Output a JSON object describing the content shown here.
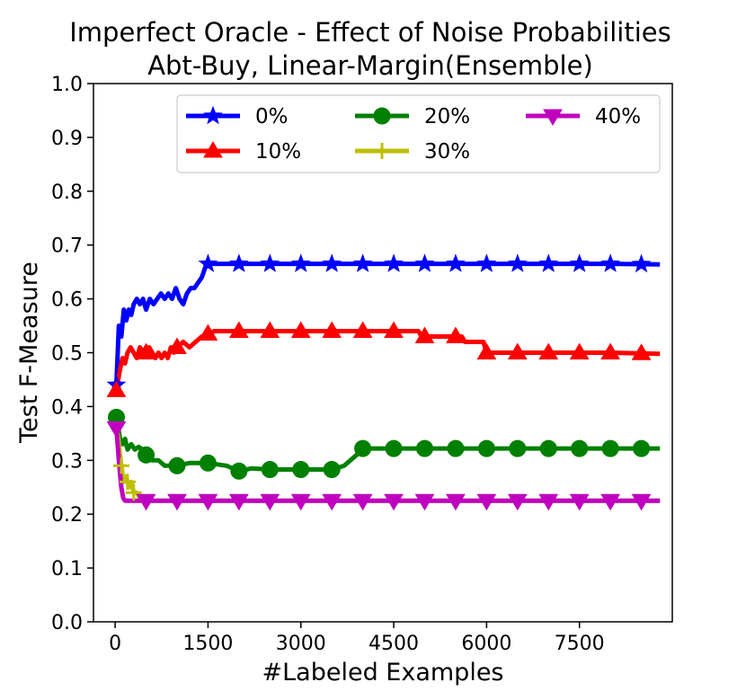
{
  "chart_data": {
    "type": "line",
    "title": "Imperfect Oracle - Effect of Noise Probabilities",
    "subtitle": "Abt-Buy, Linear-Margin(Ensemble)",
    "xlabel": "#Labeled Examples",
    "ylabel": "Test F-Measure",
    "xlim": [
      -350,
      9000
    ],
    "ylim": [
      0.0,
      1.0
    ],
    "xticks": [
      0,
      1500,
      3000,
      4500,
      6000,
      7500
    ],
    "xtick_labels": [
      "0",
      "1500",
      "3000",
      "4500",
      "6000",
      "7500"
    ],
    "yticks": [
      0.0,
      0.1,
      0.2,
      0.3,
      0.4,
      0.5,
      0.6,
      0.7,
      0.8,
      0.9,
      1.0
    ],
    "ytick_labels": [
      "0.0",
      "0.1",
      "0.2",
      "0.3",
      "0.4",
      "0.5",
      "0.6",
      "0.7",
      "0.8",
      "0.9",
      "1.0"
    ],
    "legend_position": "top-right",
    "grid": false,
    "series": [
      {
        "name": "0%",
        "color": "#0000ff",
        "marker": "star",
        "x": [
          20,
          60,
          100,
          140,
          180,
          220,
          260,
          300,
          350,
          400,
          450,
          500,
          560,
          620,
          680,
          740,
          800,
          860,
          920,
          980,
          1040,
          1100,
          1160,
          1220,
          1280,
          1340,
          1400,
          1460,
          1500,
          1550,
          2000,
          3000,
          4000,
          5000,
          6000,
          7000,
          8000,
          8800
        ],
        "y": [
          0.44,
          0.55,
          0.53,
          0.58,
          0.56,
          0.58,
          0.57,
          0.59,
          0.6,
          0.59,
          0.6,
          0.58,
          0.6,
          0.59,
          0.6,
          0.61,
          0.6,
          0.61,
          0.6,
          0.62,
          0.6,
          0.59,
          0.61,
          0.62,
          0.62,
          0.63,
          0.64,
          0.66,
          0.665,
          0.665,
          0.665,
          0.665,
          0.665,
          0.665,
          0.665,
          0.665,
          0.665,
          0.664
        ],
        "marker_x": [
          20,
          1500,
          2000,
          2500,
          3000,
          3500,
          4000,
          4500,
          5000,
          5500,
          6000,
          6500,
          7000,
          7500,
          8000,
          8500
        ]
      },
      {
        "name": "10%",
        "color": "#ff0000",
        "marker": "triangle-up",
        "x": [
          20,
          80,
          120,
          160,
          200,
          250,
          300,
          350,
          400,
          450,
          500,
          550,
          600,
          650,
          700,
          750,
          800,
          850,
          900,
          950,
          1000,
          1100,
          1200,
          1300,
          1400,
          1500,
          1600,
          1800,
          2000,
          2500,
          3000,
          3500,
          4000,
          4500,
          4900,
          4950,
          5600,
          5650,
          5950,
          6000,
          6500,
          7000,
          7500,
          8000,
          8800
        ],
        "y": [
          0.43,
          0.47,
          0.49,
          0.48,
          0.5,
          0.51,
          0.5,
          0.49,
          0.51,
          0.5,
          0.5,
          0.51,
          0.5,
          0.49,
          0.5,
          0.49,
          0.5,
          0.49,
          0.51,
          0.5,
          0.51,
          0.52,
          0.51,
          0.52,
          0.53,
          0.535,
          0.54,
          0.54,
          0.54,
          0.54,
          0.54,
          0.54,
          0.54,
          0.54,
          0.54,
          0.53,
          0.53,
          0.52,
          0.52,
          0.5,
          0.5,
          0.5,
          0.5,
          0.5,
          0.498
        ],
        "marker_x": [
          20,
          500,
          1000,
          1500,
          2000,
          2500,
          3000,
          3500,
          4000,
          4500,
          5000,
          5500,
          6000,
          6500,
          7000,
          7500,
          8000,
          8500
        ]
      },
      {
        "name": "20%",
        "color": "#008000",
        "marker": "circle",
        "x": [
          20,
          80,
          120,
          160,
          200,
          260,
          320,
          380,
          440,
          500,
          600,
          700,
          800,
          900,
          1000,
          1200,
          1500,
          1800,
          2000,
          2200,
          2500,
          2800,
          3000,
          3300,
          3500,
          3700,
          3800,
          3900,
          4000,
          4500,
          5000,
          6000,
          7000,
          8000,
          8800
        ],
        "y": [
          0.38,
          0.34,
          0.33,
          0.34,
          0.32,
          0.33,
          0.32,
          0.325,
          0.32,
          0.31,
          0.3,
          0.3,
          0.29,
          0.29,
          0.29,
          0.295,
          0.295,
          0.29,
          0.28,
          0.285,
          0.283,
          0.283,
          0.283,
          0.283,
          0.283,
          0.29,
          0.3,
          0.31,
          0.322,
          0.322,
          0.322,
          0.322,
          0.322,
          0.322,
          0.322
        ],
        "marker_x": [
          20,
          500,
          1000,
          1500,
          2000,
          2500,
          3000,
          3500,
          4000,
          4500,
          5000,
          5500,
          6000,
          6500,
          7000,
          7500,
          8000,
          8500
        ]
      },
      {
        "name": "30%",
        "color": "#bfbf00",
        "marker": "plus",
        "x": [
          20,
          60,
          100,
          140,
          180,
          220,
          260,
          300,
          350,
          400,
          450,
          8800
        ],
        "y": [
          0.37,
          0.33,
          0.29,
          0.26,
          0.27,
          0.25,
          0.26,
          0.24,
          0.24,
          0.23,
          0.225,
          0.225
        ],
        "marker_x": [
          20,
          100,
          200,
          300
        ]
      },
      {
        "name": "40%",
        "color": "#bf00bf",
        "marker": "triangle-down",
        "x": [
          20,
          60,
          100,
          130,
          160,
          200,
          250,
          300,
          8800
        ],
        "y": [
          0.36,
          0.3,
          0.25,
          0.23,
          0.225,
          0.225,
          0.225,
          0.225,
          0.225
        ],
        "marker_x": [
          20,
          500,
          1000,
          1500,
          2000,
          2500,
          3000,
          3500,
          4000,
          4500,
          5000,
          5500,
          6000,
          6500,
          7000,
          7500,
          8000,
          8500
        ]
      }
    ]
  }
}
